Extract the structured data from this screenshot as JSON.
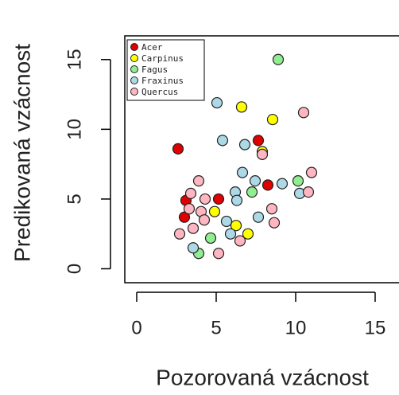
{
  "chart_data": {
    "type": "scatter",
    "xlabel": "Pozorovaná vzácnost",
    "ylabel": "Predikovaná vzácnost",
    "xlim": [
      -0.75,
      16.5
    ],
    "ylim": [
      -1,
      16.7
    ],
    "xticks": [
      0,
      5,
      10,
      15
    ],
    "yticks": [
      0,
      5,
      10,
      15
    ],
    "legend": "top-left",
    "series": [
      {
        "name": "Acer",
        "color": "#e00000",
        "x": [
          2.6,
          7.65,
          8.25,
          5.15,
          3.0,
          3.1
        ],
        "y": [
          8.6,
          9.2,
          6.0,
          5.0,
          3.7,
          4.9
        ]
      },
      {
        "name": "Carpinus",
        "color": "#ffff00",
        "x": [
          6.6,
          8.55,
          7.9,
          4.9,
          7.0,
          6.25
        ],
        "y": [
          11.6,
          10.7,
          8.4,
          4.1,
          2.5,
          3.1
        ]
      },
      {
        "name": "Fagus",
        "color": "#90ee90",
        "x": [
          8.9,
          7.25,
          10.15,
          4.65,
          3.9
        ],
        "y": [
          15.0,
          5.5,
          6.3,
          2.2,
          1.1
        ]
      },
      {
        "name": "Fraxinus",
        "color": "#add8e6",
        "x": [
          5.05,
          5.4,
          6.8,
          6.65,
          7.45,
          6.2,
          6.3,
          9.15,
          10.25,
          7.65,
          5.65,
          5.9,
          3.55
        ],
        "y": [
          11.9,
          9.2,
          8.9,
          6.9,
          6.3,
          5.5,
          4.9,
          6.1,
          5.4,
          3.7,
          3.4,
          2.5,
          1.5
        ]
      },
      {
        "name": "Quercus",
        "color": "#ffb6c1",
        "x": [
          10.5,
          11.0,
          10.8,
          3.9,
          3.4,
          4.3,
          3.3,
          4.05,
          4.25,
          3.55,
          2.7,
          5.15,
          6.5,
          8.5,
          8.65,
          7.9
        ],
        "y": [
          11.2,
          6.9,
          5.5,
          6.3,
          5.4,
          5.0,
          4.3,
          4.1,
          3.5,
          2.9,
          2.5,
          1.1,
          2.0,
          4.3,
          3.3,
          8.2
        ]
      }
    ]
  }
}
